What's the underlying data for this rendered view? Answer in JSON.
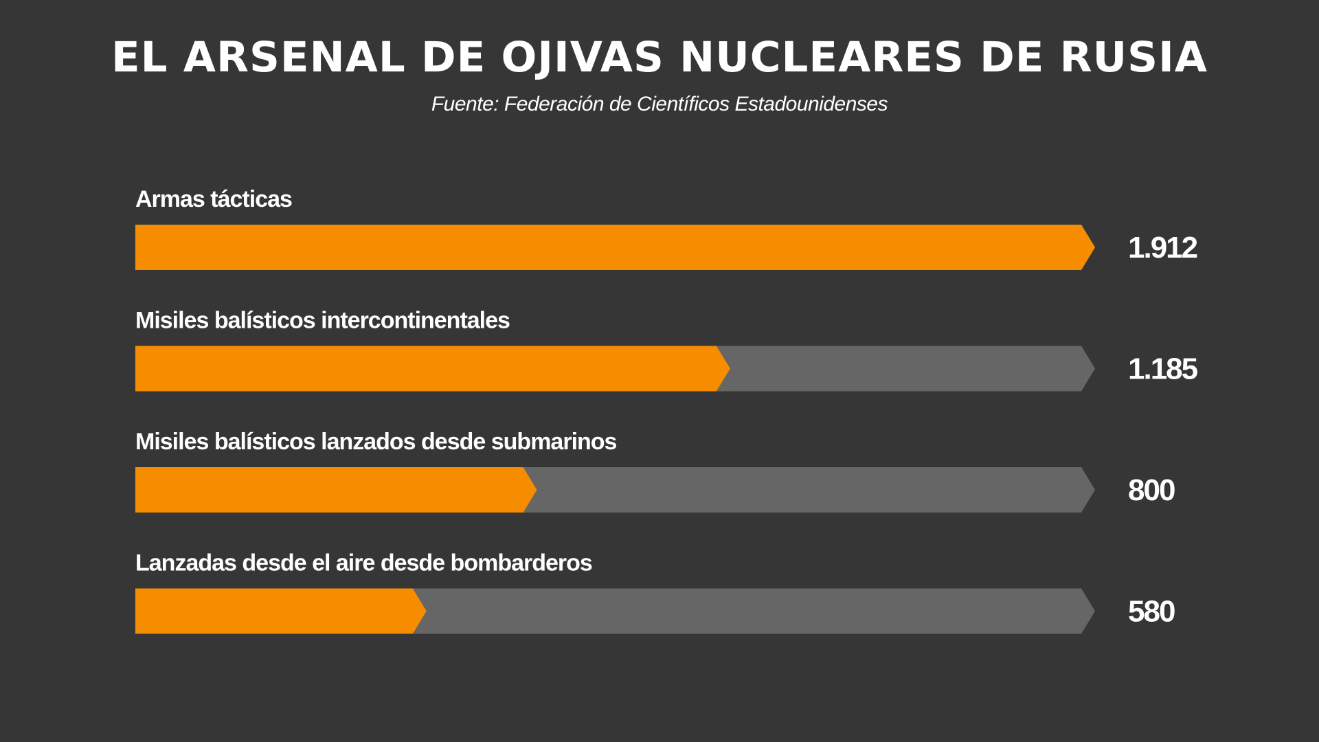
{
  "title": "EL ARSENAL DE OJIVAS NUCLEARES DE RUSIA",
  "subtitle": "Fuente: Federación de Científicos Estadounidenses",
  "colors": {
    "background": "#363636",
    "bar_fill": "#f68d00",
    "bar_track": "#666666",
    "text": "#ffffff"
  },
  "chart_data": {
    "type": "bar",
    "orientation": "horizontal",
    "categories": [
      "Armas tácticas",
      "Misiles balísticos intercontinentales",
      "Misiles balísticos lanzados desde submarinos",
      "Lanzadas desde el aire desde bombarderos"
    ],
    "values": [
      1912,
      1185,
      800,
      580
    ],
    "value_labels": [
      "1.912",
      "1.185",
      "800",
      "580"
    ],
    "xlim": [
      0,
      1912
    ],
    "grid": false,
    "legend": "none"
  }
}
